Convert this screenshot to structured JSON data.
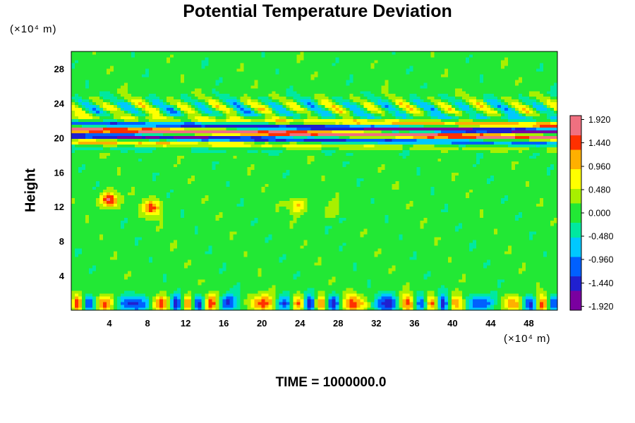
{
  "chart_data": {
    "type": "heatmap",
    "title": "Potential Temperature Deviation",
    "ylabel": "Height",
    "xlabel": "",
    "x_unit_label": "(×10⁴ m)",
    "y_unit_label": "(×10⁴ m)",
    "footer": "TIME = 1000000.0",
    "xlim": [
      0,
      51
    ],
    "ylim": [
      0,
      30
    ],
    "x_ticks": [
      4,
      8,
      12,
      16,
      20,
      24,
      28,
      32,
      36,
      40,
      44,
      48
    ],
    "y_ticks": [
      4,
      8,
      12,
      16,
      20,
      24,
      28
    ],
    "colorbar": {
      "min": -2.0,
      "max": 2.0,
      "labels": [
        "1.920",
        "1.440",
        "0.960",
        "0.480",
        "0.000",
        "-0.480",
        "-0.960",
        "-1.440",
        "-1.920"
      ],
      "label_values": [
        1.92,
        1.44,
        0.96,
        0.48,
        0.0,
        -0.48,
        -0.96,
        -1.44,
        -1.92
      ],
      "colors": [
        "#7a00a0",
        "#2020d0",
        "#0060ff",
        "#00c8ff",
        "#00e8a0",
        "#22e835",
        "#a8f000",
        "#ffff00",
        "#ffb000",
        "#ff3000",
        "#f07080"
      ]
    },
    "bands": [
      {
        "name": "surface layer",
        "y_center": 0.8,
        "half_width": 1.0,
        "amplitude": 1.4
      },
      {
        "name": "upper oscillating layer",
        "y_center": 20.6,
        "half_width": 1.4,
        "amplitude": 2.0
      },
      {
        "name": "gravity wave layer",
        "y_center": 23.5,
        "half_width": 1.2,
        "amplitude": 0.9
      }
    ],
    "features": [
      {
        "name": "warm anomaly",
        "x": 4.0,
        "y": 12.8,
        "value": 1.9
      },
      {
        "name": "warm anomaly",
        "x": 8.5,
        "y": 11.9,
        "value": 1.4
      },
      {
        "name": "warm anomaly",
        "x": 23.8,
        "y": 12.2,
        "value": 1.0
      },
      {
        "name": "weak warm line",
        "x": 27.5,
        "y": 11.3,
        "value": 0.5
      },
      {
        "name": "weak cool patch",
        "x": 28.5,
        "y": 10.6,
        "value": -0.4
      }
    ]
  }
}
